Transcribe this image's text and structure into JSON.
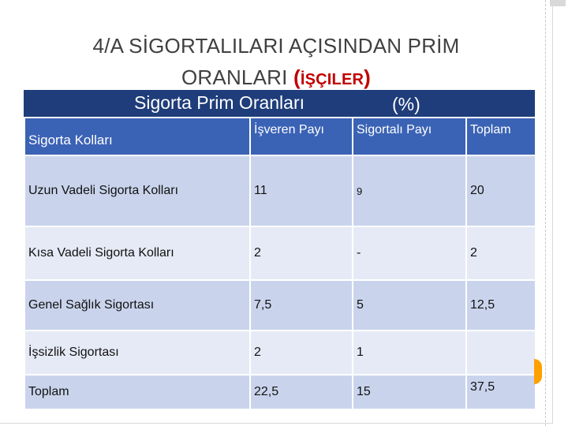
{
  "title": {
    "line1": "4/A SİGORTALILARI AÇISINDAN PRİM",
    "line2": "ORANLARI",
    "paren_open": "(",
    "paren_word": "İŞÇILER",
    "paren_close": ")"
  },
  "table": {
    "caption": "Sigorta Prim Oranları",
    "caption_unit": "(%)",
    "headers": [
      "Sigorta Kolları",
      "İşveren Payı",
      "Sigortalı Payı",
      "Toplam"
    ],
    "rows": [
      [
        "Uzun Vadeli Sigorta Kolları",
        "11",
        "9",
        "20"
      ],
      [
        "Kısa Vadeli Sigorta Kolları",
        "2",
        "-",
        "2"
      ],
      [
        "Genel Sağlık Sigortası",
        "7,5",
        "5",
        "12,5"
      ],
      [
        "İşsizlik Sigortası",
        "2",
        "1",
        ""
      ],
      [
        "Toplam",
        "22,5",
        "15",
        "37,5"
      ]
    ]
  },
  "colors": {
    "caption_bg": "#1f3d7a",
    "header_bg": "#3b63b5",
    "row_odd": "#c9d4ec",
    "row_even": "#e6eaf6",
    "accent": "#c00000",
    "tab_marker": "#ffa000"
  }
}
